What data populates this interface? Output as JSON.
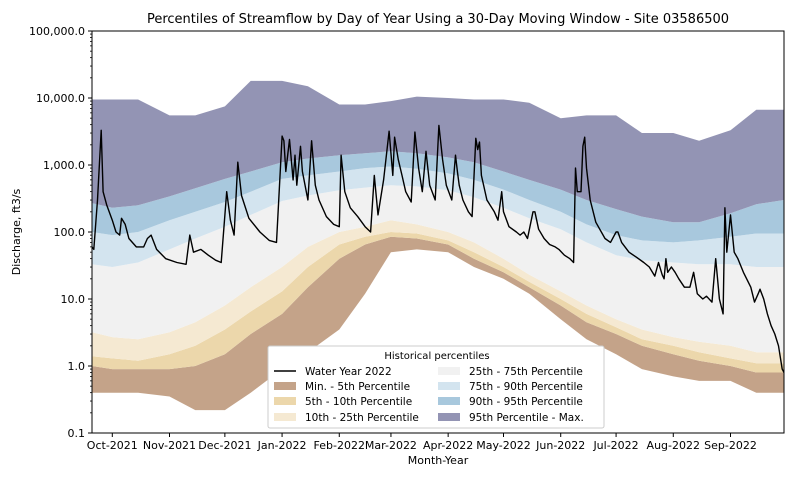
{
  "chart_data": {
    "type": "area",
    "title": "Percentiles of Streamflow by Day of Year Using a 30-Day Moving Window - Site 03586500",
    "xlabel": "Month-Year",
    "ylabel": "Discharge, ft3/s",
    "y_scale": "log",
    "ylim": [
      0.1,
      100000
    ],
    "y_ticks": [
      {
        "value": 0.1,
        "label": "0.1"
      },
      {
        "value": 1,
        "label": "1.0"
      },
      {
        "value": 10,
        "label": "10.0"
      },
      {
        "value": 100,
        "label": "100.0"
      },
      {
        "value": 1000,
        "label": "1,000.0"
      },
      {
        "value": 10000,
        "label": "10,000.0"
      },
      {
        "value": 100000,
        "label": "100,000.0"
      }
    ],
    "xlim": [
      "2021-09-20",
      "2022-09-30"
    ],
    "x_ticks": [
      {
        "date": "2021-10-01",
        "label": "Oct-2021"
      },
      {
        "date": "2021-11-01",
        "label": "Nov-2021"
      },
      {
        "date": "2021-12-01",
        "label": "Dec-2021"
      },
      {
        "date": "2022-01-01",
        "label": "Jan-2022"
      },
      {
        "date": "2022-02-01",
        "label": "Feb-2022"
      },
      {
        "date": "2022-03-01",
        "label": "Mar-2022"
      },
      {
        "date": "2022-04-01",
        "label": "Apr-2022"
      },
      {
        "date": "2022-05-01",
        "label": "May-2022"
      },
      {
        "date": "2022-06-01",
        "label": "Jun-2022"
      },
      {
        "date": "2022-07-01",
        "label": "Jul-2022"
      },
      {
        "date": "2022-08-01",
        "label": "Aug-2022"
      },
      {
        "date": "2022-09-01",
        "label": "Sep-2022"
      }
    ],
    "grid": false,
    "legend": {
      "title": "Historical percentiles",
      "placement": "lower-center",
      "columns": 2
    },
    "x": [
      "2021-09-20",
      "2021-10-01",
      "2021-10-15",
      "2021-11-01",
      "2021-11-15",
      "2021-12-01",
      "2021-12-15",
      "2022-01-01",
      "2022-01-15",
      "2022-02-01",
      "2022-02-15",
      "2022-03-01",
      "2022-03-15",
      "2022-04-01",
      "2022-04-15",
      "2022-05-01",
      "2022-05-15",
      "2022-06-01",
      "2022-06-15",
      "2022-07-01",
      "2022-07-15",
      "2022-08-01",
      "2022-08-15",
      "2022-09-01",
      "2022-09-15",
      "2022-09-30"
    ],
    "percentile_bounds": {
      "min": [
        0.4,
        0.4,
        0.4,
        0.35,
        0.22,
        0.22,
        0.4,
        0.9,
        1.6,
        3.5,
        12,
        50,
        55,
        50,
        30,
        20,
        12,
        5,
        2.5,
        1.5,
        0.9,
        0.7,
        0.6,
        0.6,
        0.4,
        0.4
      ],
      "p05": [
        1.0,
        0.9,
        0.9,
        0.9,
        1.0,
        1.5,
        3.0,
        6.0,
        15,
        40,
        65,
        85,
        80,
        65,
        40,
        25,
        15,
        8,
        4.5,
        3.0,
        2.0,
        1.5,
        1.2,
        1.0,
        0.8,
        0.8
      ],
      "p10": [
        1.4,
        1.3,
        1.2,
        1.5,
        2.0,
        3.5,
        6.5,
        13,
        30,
        65,
        85,
        100,
        95,
        75,
        50,
        30,
        18,
        10,
        6,
        3.8,
        2.5,
        2.0,
        1.6,
        1.3,
        1.1,
        1.1
      ],
      "p25": [
        3.2,
        2.7,
        2.5,
        3.2,
        4.5,
        8,
        15,
        30,
        60,
        100,
        120,
        150,
        130,
        100,
        70,
        40,
        23,
        13,
        8,
        5,
        3.5,
        2.7,
        2.3,
        2.0,
        1.6,
        1.6
      ],
      "p75": [
        33,
        30,
        35,
        55,
        80,
        120,
        180,
        290,
        350,
        420,
        460,
        500,
        480,
        420,
        330,
        230,
        160,
        110,
        70,
        45,
        38,
        35,
        33,
        33,
        30,
        30
      ],
      "p90": [
        100,
        90,
        100,
        150,
        200,
        280,
        400,
        620,
        700,
        800,
        900,
        950,
        880,
        750,
        600,
        430,
        300,
        200,
        130,
        90,
        75,
        70,
        75,
        85,
        95,
        95
      ],
      "p95": [
        270,
        230,
        250,
        340,
        450,
        620,
        800,
        1100,
        1250,
        1400,
        1500,
        1600,
        1500,
        1300,
        1100,
        800,
        600,
        430,
        300,
        220,
        170,
        140,
        140,
        190,
        260,
        300
      ],
      "max": [
        9500,
        9500,
        9500,
        5500,
        5500,
        7500,
        18000,
        18000,
        15000,
        8000,
        8000,
        9000,
        10500,
        10000,
        9500,
        9500,
        8500,
        5000,
        5500,
        5500,
        3000,
        3000,
        2300,
        3300,
        6700,
        6700
      ]
    },
    "series": [
      {
        "key": "wy",
        "name": "Water Year 2022",
        "color": "#000000",
        "style": "line"
      },
      {
        "key": "min_p05",
        "name": "Min. - 5th Percentile",
        "color": "#c4a389",
        "lower": "min",
        "upper": "p05"
      },
      {
        "key": "p05_p10",
        "name": "5th - 10th Percentile",
        "color": "#ecd7ab",
        "lower": "p05",
        "upper": "p10"
      },
      {
        "key": "p10_p25",
        "name": "10th - 25th Percentile",
        "color": "#f5e9d2",
        "lower": "p10",
        "upper": "p25"
      },
      {
        "key": "p25_p75",
        "name": "25th - 75th Percentile",
        "color": "#f1f1f1",
        "lower": "p25",
        "upper": "p75"
      },
      {
        "key": "p75_p90",
        "name": "75th - 90th Percentile",
        "color": "#d3e4ef",
        "lower": "p75",
        "upper": "p90"
      },
      {
        "key": "p90_p95",
        "name": "90th - 95th Percentile",
        "color": "#a8c8dd",
        "lower": "p90",
        "upper": "p95"
      },
      {
        "key": "p95_max",
        "name": "95th Percentile - Max.",
        "color": "#9394b4",
        "lower": "p95",
        "upper": "max"
      }
    ],
    "water_year_2022": [
      [
        "2021-09-20",
        60
      ],
      [
        "2021-09-21",
        55
      ],
      [
        "2021-09-23",
        300
      ],
      [
        "2021-09-25",
        3300
      ],
      [
        "2021-09-26",
        400
      ],
      [
        "2021-09-28",
        250
      ],
      [
        "2021-10-01",
        150
      ],
      [
        "2021-10-03",
        100
      ],
      [
        "2021-10-05",
        90
      ],
      [
        "2021-10-06",
        160
      ],
      [
        "2021-10-08",
        130
      ],
      [
        "2021-10-10",
        80
      ],
      [
        "2021-10-14",
        60
      ],
      [
        "2021-10-18",
        60
      ],
      [
        "2021-10-20",
        80
      ],
      [
        "2021-10-22",
        90
      ],
      [
        "2021-10-25",
        55
      ],
      [
        "2021-10-30",
        40
      ],
      [
        "2021-11-05",
        35
      ],
      [
        "2021-11-10",
        33
      ],
      [
        "2021-11-12",
        90
      ],
      [
        "2021-11-14",
        50
      ],
      [
        "2021-11-18",
        55
      ],
      [
        "2021-11-22",
        45
      ],
      [
        "2021-11-26",
        38
      ],
      [
        "2021-11-29",
        35
      ],
      [
        "2021-12-02",
        400
      ],
      [
        "2021-12-04",
        150
      ],
      [
        "2021-12-06",
        90
      ],
      [
        "2021-12-08",
        1100
      ],
      [
        "2021-12-10",
        350
      ],
      [
        "2021-12-14",
        160
      ],
      [
        "2021-12-20",
        100
      ],
      [
        "2021-12-25",
        75
      ],
      [
        "2021-12-29",
        70
      ],
      [
        "2022-01-01",
        2700
      ],
      [
        "2022-01-02",
        2300
      ],
      [
        "2022-01-03",
        800
      ],
      [
        "2022-01-05",
        2400
      ],
      [
        "2022-01-07",
        600
      ],
      [
        "2022-01-08",
        1400
      ],
      [
        "2022-01-09",
        500
      ],
      [
        "2022-01-11",
        1900
      ],
      [
        "2022-01-12",
        800
      ],
      [
        "2022-01-15",
        300
      ],
      [
        "2022-01-17",
        2300
      ],
      [
        "2022-01-19",
        500
      ],
      [
        "2022-01-21",
        300
      ],
      [
        "2022-01-25",
        170
      ],
      [
        "2022-01-29",
        130
      ],
      [
        "2022-02-01",
        120
      ],
      [
        "2022-02-02",
        1400
      ],
      [
        "2022-02-04",
        400
      ],
      [
        "2022-02-07",
        230
      ],
      [
        "2022-02-11",
        170
      ],
      [
        "2022-02-15",
        120
      ],
      [
        "2022-02-18",
        100
      ],
      [
        "2022-02-20",
        700
      ],
      [
        "2022-02-22",
        180
      ],
      [
        "2022-02-25",
        600
      ],
      [
        "2022-02-28",
        3200
      ],
      [
        "2022-03-02",
        700
      ],
      [
        "2022-03-03",
        2600
      ],
      [
        "2022-03-05",
        1200
      ],
      [
        "2022-03-07",
        700
      ],
      [
        "2022-03-09",
        400
      ],
      [
        "2022-03-12",
        280
      ],
      [
        "2022-03-14",
        3100
      ],
      [
        "2022-03-16",
        900
      ],
      [
        "2022-03-18",
        400
      ],
      [
        "2022-03-20",
        1600
      ],
      [
        "2022-03-22",
        500
      ],
      [
        "2022-03-25",
        300
      ],
      [
        "2022-03-27",
        3900
      ],
      [
        "2022-03-29",
        1200
      ],
      [
        "2022-03-31",
        500
      ],
      [
        "2022-04-03",
        300
      ],
      [
        "2022-04-05",
        1400
      ],
      [
        "2022-04-06",
        800
      ],
      [
        "2022-04-07",
        500
      ],
      [
        "2022-04-09",
        300
      ],
      [
        "2022-04-12",
        200
      ],
      [
        "2022-04-14",
        170
      ],
      [
        "2022-04-16",
        2500
      ],
      [
        "2022-04-17",
        1700
      ],
      [
        "2022-04-18",
        2200
      ],
      [
        "2022-04-19",
        700
      ],
      [
        "2022-04-22",
        300
      ],
      [
        "2022-04-26",
        200
      ],
      [
        "2022-04-28",
        150
      ],
      [
        "2022-04-30",
        400
      ],
      [
        "2022-05-01",
        200
      ],
      [
        "2022-05-04",
        120
      ],
      [
        "2022-05-08",
        100
      ],
      [
        "2022-05-10",
        90
      ],
      [
        "2022-05-12",
        100
      ],
      [
        "2022-05-14",
        80
      ],
      [
        "2022-05-17",
        200
      ],
      [
        "2022-05-18",
        200
      ],
      [
        "2022-05-20",
        110
      ],
      [
        "2022-05-23",
        80
      ],
      [
        "2022-05-26",
        65
      ],
      [
        "2022-05-29",
        60
      ],
      [
        "2022-05-31",
        55
      ],
      [
        "2022-06-03",
        45
      ],
      [
        "2022-06-06",
        40
      ],
      [
        "2022-06-08",
        35
      ],
      [
        "2022-06-09",
        900
      ],
      [
        "2022-06-10",
        400
      ],
      [
        "2022-06-12",
        400
      ],
      [
        "2022-06-13",
        1900
      ],
      [
        "2022-06-14",
        2600
      ],
      [
        "2022-06-15",
        900
      ],
      [
        "2022-06-17",
        300
      ],
      [
        "2022-06-20",
        140
      ],
      [
        "2022-06-25",
        80
      ],
      [
        "2022-06-28",
        70
      ],
      [
        "2022-07-01",
        100
      ],
      [
        "2022-07-02",
        100
      ],
      [
        "2022-07-04",
        70
      ],
      [
        "2022-07-08",
        50
      ],
      [
        "2022-07-12",
        42
      ],
      [
        "2022-07-16",
        35
      ],
      [
        "2022-07-19",
        30
      ],
      [
        "2022-07-22",
        22
      ],
      [
        "2022-07-24",
        35
      ],
      [
        "2022-07-26",
        23
      ],
      [
        "2022-07-27",
        20
      ],
      [
        "2022-07-28",
        40
      ],
      [
        "2022-07-29",
        25
      ],
      [
        "2022-07-31",
        30
      ],
      [
        "2022-08-02",
        25
      ],
      [
        "2022-08-04",
        20
      ],
      [
        "2022-08-07",
        15
      ],
      [
        "2022-08-10",
        15
      ],
      [
        "2022-08-12",
        25
      ],
      [
        "2022-08-14",
        12
      ],
      [
        "2022-08-17",
        10
      ],
      [
        "2022-08-19",
        11
      ],
      [
        "2022-08-22",
        9
      ],
      [
        "2022-08-24",
        40
      ],
      [
        "2022-08-26",
        10
      ],
      [
        "2022-08-28",
        6
      ],
      [
        "2022-08-29",
        230
      ],
      [
        "2022-08-30",
        50
      ],
      [
        "2022-09-01",
        180
      ],
      [
        "2022-09-03",
        50
      ],
      [
        "2022-09-05",
        40
      ],
      [
        "2022-09-08",
        25
      ],
      [
        "2022-09-12",
        15
      ],
      [
        "2022-09-14",
        9
      ],
      [
        "2022-09-16",
        12
      ],
      [
        "2022-09-17",
        14
      ],
      [
        "2022-09-19",
        10
      ],
      [
        "2022-09-21",
        6
      ],
      [
        "2022-09-23",
        4
      ],
      [
        "2022-09-25",
        3
      ],
      [
        "2022-09-27",
        2
      ],
      [
        "2022-09-29",
        0.9
      ],
      [
        "2022-09-30",
        0.8
      ]
    ]
  },
  "tick_marks": {
    "y_minor_count": 8
  }
}
